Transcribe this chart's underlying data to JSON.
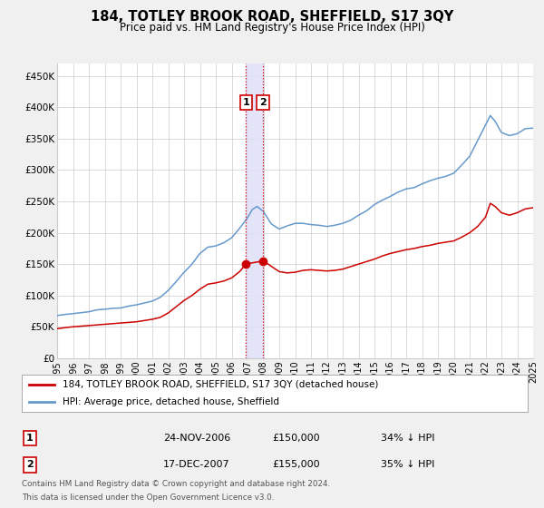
{
  "title": "184, TOTLEY BROOK ROAD, SHEFFIELD, S17 3QY",
  "subtitle": "Price paid vs. HM Land Registry's House Price Index (HPI)",
  "legend_line1": "184, TOTLEY BROOK ROAD, SHEFFIELD, S17 3QY (detached house)",
  "legend_line2": "HPI: Average price, detached house, Sheffield",
  "sale1_label": "1",
  "sale1_date": "24-NOV-2006",
  "sale1_price": "£150,000",
  "sale1_hpi": "34% ↓ HPI",
  "sale1_x": 2006.9,
  "sale1_y": 150000,
  "sale2_label": "2",
  "sale2_date": "17-DEC-2007",
  "sale2_price": "£155,000",
  "sale2_hpi": "35% ↓ HPI",
  "sale2_x": 2007.97,
  "sale2_y": 155000,
  "red_color": "#cc0000",
  "blue_color": "#6699cc",
  "background_color": "#f0f0f0",
  "plot_bg_color": "#ffffff",
  "grid_color": "#cccccc",
  "shade_color": "#e0e0f8",
  "ylim": [
    0,
    470000
  ],
  "xlim_start": 1995,
  "xlim_end": 2025,
  "ylabel_ticks": [
    0,
    50000,
    100000,
    150000,
    200000,
    250000,
    300000,
    350000,
    400000,
    450000
  ],
  "ylabel_labels": [
    "£0",
    "£50K",
    "£100K",
    "£150K",
    "£200K",
    "£250K",
    "£300K",
    "£350K",
    "£400K",
    "£450K"
  ],
  "xticks": [
    1995,
    1996,
    1997,
    1998,
    1999,
    2000,
    2001,
    2002,
    2003,
    2004,
    2005,
    2006,
    2007,
    2008,
    2009,
    2010,
    2011,
    2012,
    2013,
    2014,
    2015,
    2016,
    2017,
    2018,
    2019,
    2020,
    2021,
    2022,
    2023,
    2024,
    2025
  ],
  "footer_line1": "Contains HM Land Registry data © Crown copyright and database right 2024.",
  "footer_line2": "This data is licensed under the Open Government Licence v3.0.",
  "hpi_data": [
    [
      1995.0,
      68000
    ],
    [
      1995.3,
      69000
    ],
    [
      1995.6,
      70000
    ],
    [
      1996.0,
      71000
    ],
    [
      1996.5,
      72500
    ],
    [
      1997.0,
      74000
    ],
    [
      1997.5,
      77000
    ],
    [
      1998.0,
      78000
    ],
    [
      1998.5,
      79500
    ],
    [
      1999.0,
      80000
    ],
    [
      1999.5,
      83000
    ],
    [
      2000.0,
      85000
    ],
    [
      2000.5,
      88000
    ],
    [
      2001.0,
      91000
    ],
    [
      2001.5,
      97000
    ],
    [
      2002.0,
      108000
    ],
    [
      2002.5,
      122000
    ],
    [
      2003.0,
      137000
    ],
    [
      2003.5,
      150000
    ],
    [
      2004.0,
      167000
    ],
    [
      2004.5,
      177000
    ],
    [
      2005.0,
      179000
    ],
    [
      2005.5,
      184000
    ],
    [
      2006.0,
      192000
    ],
    [
      2006.5,
      207000
    ],
    [
      2007.0,
      224000
    ],
    [
      2007.3,
      237000
    ],
    [
      2007.6,
      242000
    ],
    [
      2008.0,
      234000
    ],
    [
      2008.5,
      214000
    ],
    [
      2009.0,
      206000
    ],
    [
      2009.5,
      211000
    ],
    [
      2010.0,
      215000
    ],
    [
      2010.5,
      215000
    ],
    [
      2011.0,
      213000
    ],
    [
      2011.5,
      212000
    ],
    [
      2012.0,
      210000
    ],
    [
      2012.5,
      212000
    ],
    [
      2013.0,
      215000
    ],
    [
      2013.5,
      220000
    ],
    [
      2014.0,
      228000
    ],
    [
      2014.5,
      235000
    ],
    [
      2015.0,
      245000
    ],
    [
      2015.5,
      252000
    ],
    [
      2016.0,
      258000
    ],
    [
      2016.5,
      265000
    ],
    [
      2017.0,
      270000
    ],
    [
      2017.5,
      272000
    ],
    [
      2018.0,
      278000
    ],
    [
      2018.5,
      283000
    ],
    [
      2019.0,
      287000
    ],
    [
      2019.5,
      290000
    ],
    [
      2020.0,
      295000
    ],
    [
      2020.5,
      308000
    ],
    [
      2021.0,
      322000
    ],
    [
      2021.5,
      347000
    ],
    [
      2022.0,
      372000
    ],
    [
      2022.3,
      387000
    ],
    [
      2022.6,
      378000
    ],
    [
      2023.0,
      360000
    ],
    [
      2023.5,
      355000
    ],
    [
      2024.0,
      358000
    ],
    [
      2024.5,
      366000
    ],
    [
      2025.0,
      367000
    ]
  ],
  "red_data": [
    [
      1995.0,
      47000
    ],
    [
      1995.3,
      48000
    ],
    [
      1995.6,
      49000
    ],
    [
      1996.0,
      50000
    ],
    [
      1996.5,
      51000
    ],
    [
      1997.0,
      52000
    ],
    [
      1997.5,
      53000
    ],
    [
      1998.0,
      54000
    ],
    [
      1998.5,
      55000
    ],
    [
      1999.0,
      56000
    ],
    [
      1999.5,
      57000
    ],
    [
      2000.0,
      58000
    ],
    [
      2000.5,
      60000
    ],
    [
      2001.0,
      62000
    ],
    [
      2001.5,
      65000
    ],
    [
      2002.0,
      72000
    ],
    [
      2002.5,
      82000
    ],
    [
      2003.0,
      92000
    ],
    [
      2003.5,
      100000
    ],
    [
      2004.0,
      110000
    ],
    [
      2004.5,
      118000
    ],
    [
      2005.0,
      120000
    ],
    [
      2005.5,
      123000
    ],
    [
      2006.0,
      128000
    ],
    [
      2006.5,
      138000
    ],
    [
      2006.9,
      150000
    ],
    [
      2007.3,
      152000
    ],
    [
      2007.97,
      155000
    ],
    [
      2008.3,
      150000
    ],
    [
      2008.7,
      143000
    ],
    [
      2009.0,
      138000
    ],
    [
      2009.5,
      136000
    ],
    [
      2010.0,
      137000
    ],
    [
      2010.5,
      140000
    ],
    [
      2011.0,
      141000
    ],
    [
      2011.5,
      140000
    ],
    [
      2012.0,
      139000
    ],
    [
      2012.5,
      140000
    ],
    [
      2013.0,
      142000
    ],
    [
      2013.5,
      146000
    ],
    [
      2014.0,
      150000
    ],
    [
      2014.5,
      154000
    ],
    [
      2015.0,
      158000
    ],
    [
      2015.5,
      163000
    ],
    [
      2016.0,
      167000
    ],
    [
      2016.5,
      170000
    ],
    [
      2017.0,
      173000
    ],
    [
      2017.5,
      175000
    ],
    [
      2018.0,
      178000
    ],
    [
      2018.5,
      180000
    ],
    [
      2019.0,
      183000
    ],
    [
      2019.5,
      185000
    ],
    [
      2020.0,
      187000
    ],
    [
      2020.5,
      193000
    ],
    [
      2021.0,
      200000
    ],
    [
      2021.5,
      210000
    ],
    [
      2022.0,
      225000
    ],
    [
      2022.3,
      247000
    ],
    [
      2022.6,
      242000
    ],
    [
      2023.0,
      232000
    ],
    [
      2023.5,
      228000
    ],
    [
      2024.0,
      232000
    ],
    [
      2024.5,
      238000
    ],
    [
      2025.0,
      240000
    ]
  ]
}
